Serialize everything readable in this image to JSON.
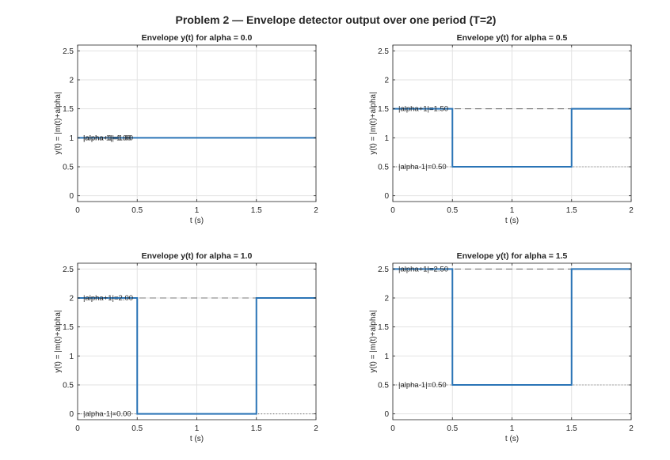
{
  "figure_title": "Problem 2 — Envelope detector output over one period (T=2)",
  "colors": {
    "line": "#2a74b6",
    "grid": "#e2e2e2",
    "axes": "#262626",
    "ref": "#555555"
  },
  "chart_data": [
    {
      "type": "line",
      "step": true,
      "title": "Envelope y(t) for alpha = 0.0",
      "xlabel": "t (s)",
      "ylabel": "y(t) = |m(t)+alpha|",
      "xlim": [
        0,
        2
      ],
      "ylim": [
        -0.1,
        2.6
      ],
      "xticks": [
        0,
        0.5,
        1,
        1.5,
        2
      ],
      "xtick_labels": [
        "0",
        "0.5",
        "1",
        "1.5",
        "2"
      ],
      "yticks": [
        0,
        0.5,
        1,
        1.5,
        2,
        2.5
      ],
      "ytick_labels": [
        "0",
        "0.5",
        "1",
        "1.5",
        "2",
        "2.5"
      ],
      "grid": true,
      "series": [
        {
          "x": [
            0,
            0.5,
            0.5,
            1.5,
            1.5,
            2
          ],
          "y": [
            1,
            1,
            1,
            1,
            1,
            1
          ]
        }
      ],
      "reference_lines": [
        {
          "y": 1,
          "style": "dashed",
          "label": "|alpha+1|=1.00"
        },
        {
          "y": 1,
          "style": "dotted",
          "label": "|alpha-1|=1.00"
        }
      ]
    },
    {
      "type": "line",
      "step": true,
      "title": "Envelope y(t) for alpha = 0.5",
      "xlabel": "t (s)",
      "ylabel": "y(t) = |m(t)+alpha|",
      "xlim": [
        0,
        2
      ],
      "ylim": [
        -0.1,
        2.6
      ],
      "xticks": [
        0,
        0.5,
        1,
        1.5,
        2
      ],
      "xtick_labels": [
        "0",
        "0.5",
        "1",
        "1.5",
        "2"
      ],
      "yticks": [
        0,
        0.5,
        1,
        1.5,
        2,
        2.5
      ],
      "ytick_labels": [
        "0",
        "0.5",
        "1",
        "1.5",
        "2",
        "2.5"
      ],
      "grid": true,
      "series": [
        {
          "x": [
            0,
            0.5,
            0.5,
            1.5,
            1.5,
            2
          ],
          "y": [
            1.5,
            1.5,
            0.5,
            0.5,
            1.5,
            1.5
          ]
        }
      ],
      "reference_lines": [
        {
          "y": 1.5,
          "style": "dashed",
          "label": "|alpha+1|=1.50"
        },
        {
          "y": 0.5,
          "style": "dotted",
          "label": "|alpha-1|=0.50"
        }
      ]
    },
    {
      "type": "line",
      "step": true,
      "title": "Envelope y(t) for alpha = 1.0",
      "xlabel": "t (s)",
      "ylabel": "y(t) = |m(t)+alpha|",
      "xlim": [
        0,
        2
      ],
      "ylim": [
        -0.1,
        2.6
      ],
      "xticks": [
        0,
        0.5,
        1,
        1.5,
        2
      ],
      "xtick_labels": [
        "0",
        "0.5",
        "1",
        "1.5",
        "2"
      ],
      "yticks": [
        0,
        0.5,
        1,
        1.5,
        2,
        2.5
      ],
      "ytick_labels": [
        "0",
        "0.5",
        "1",
        "1.5",
        "2",
        "2.5"
      ],
      "grid": true,
      "series": [
        {
          "x": [
            0,
            0.5,
            0.5,
            1.5,
            1.5,
            2
          ],
          "y": [
            2,
            2,
            0,
            0,
            2,
            2
          ]
        }
      ],
      "reference_lines": [
        {
          "y": 2,
          "style": "dashed",
          "label": "|alpha+1|=2.00"
        },
        {
          "y": 0,
          "style": "dotted",
          "label": "|alpha-1|=0.00"
        }
      ]
    },
    {
      "type": "line",
      "step": true,
      "title": "Envelope y(t) for alpha = 1.5",
      "xlabel": "t (s)",
      "ylabel": "y(t) = |m(t)+alpha|",
      "xlim": [
        0,
        2
      ],
      "ylim": [
        -0.1,
        2.6
      ],
      "xticks": [
        0,
        0.5,
        1,
        1.5,
        2
      ],
      "xtick_labels": [
        "0",
        "0.5",
        "1",
        "1.5",
        "2"
      ],
      "yticks": [
        0,
        0.5,
        1,
        1.5,
        2,
        2.5
      ],
      "ytick_labels": [
        "0",
        "0.5",
        "1",
        "1.5",
        "2",
        "2.5"
      ],
      "grid": true,
      "series": [
        {
          "x": [
            0,
            0.5,
            0.5,
            1.5,
            1.5,
            2
          ],
          "y": [
            2.5,
            2.5,
            0.5,
            0.5,
            2.5,
            2.5
          ]
        }
      ],
      "reference_lines": [
        {
          "y": 2.5,
          "style": "dashed",
          "label": "|alpha+1|=2.50"
        },
        {
          "y": 0.5,
          "style": "dotted",
          "label": "|alpha-1|=0.50"
        }
      ]
    }
  ]
}
